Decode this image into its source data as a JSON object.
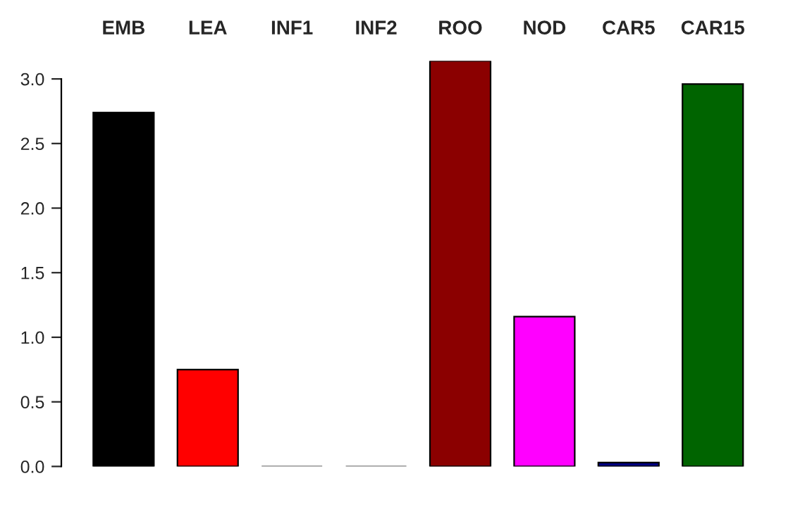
{
  "chart_data": {
    "type": "bar",
    "categories": [
      "EMB",
      "LEA",
      "INF1",
      "INF2",
      "ROO",
      "NOD",
      "CAR5",
      "CAR15"
    ],
    "values": [
      2.74,
      0.75,
      0.0,
      0.0,
      3.14,
      1.16,
      0.03,
      2.96
    ],
    "colors": [
      "#000000",
      "#ff0000",
      "#808080",
      "#808080",
      "#8b0000",
      "#ff00ff",
      "#000080",
      "#006400"
    ],
    "ylim": [
      0,
      3.14
    ],
    "yticks": [
      {
        "value": 0,
        "label": "0.0"
      },
      {
        "value": 0.5,
        "label": "0.5"
      },
      {
        "value": 1,
        "label": "1.0"
      },
      {
        "value": 1.5,
        "label": "1.5"
      },
      {
        "value": 2,
        "label": "2.0"
      },
      {
        "value": 2.5,
        "label": "2.5"
      },
      {
        "value": 3,
        "label": "3.0"
      }
    ],
    "grid": false,
    "legend": false
  }
}
